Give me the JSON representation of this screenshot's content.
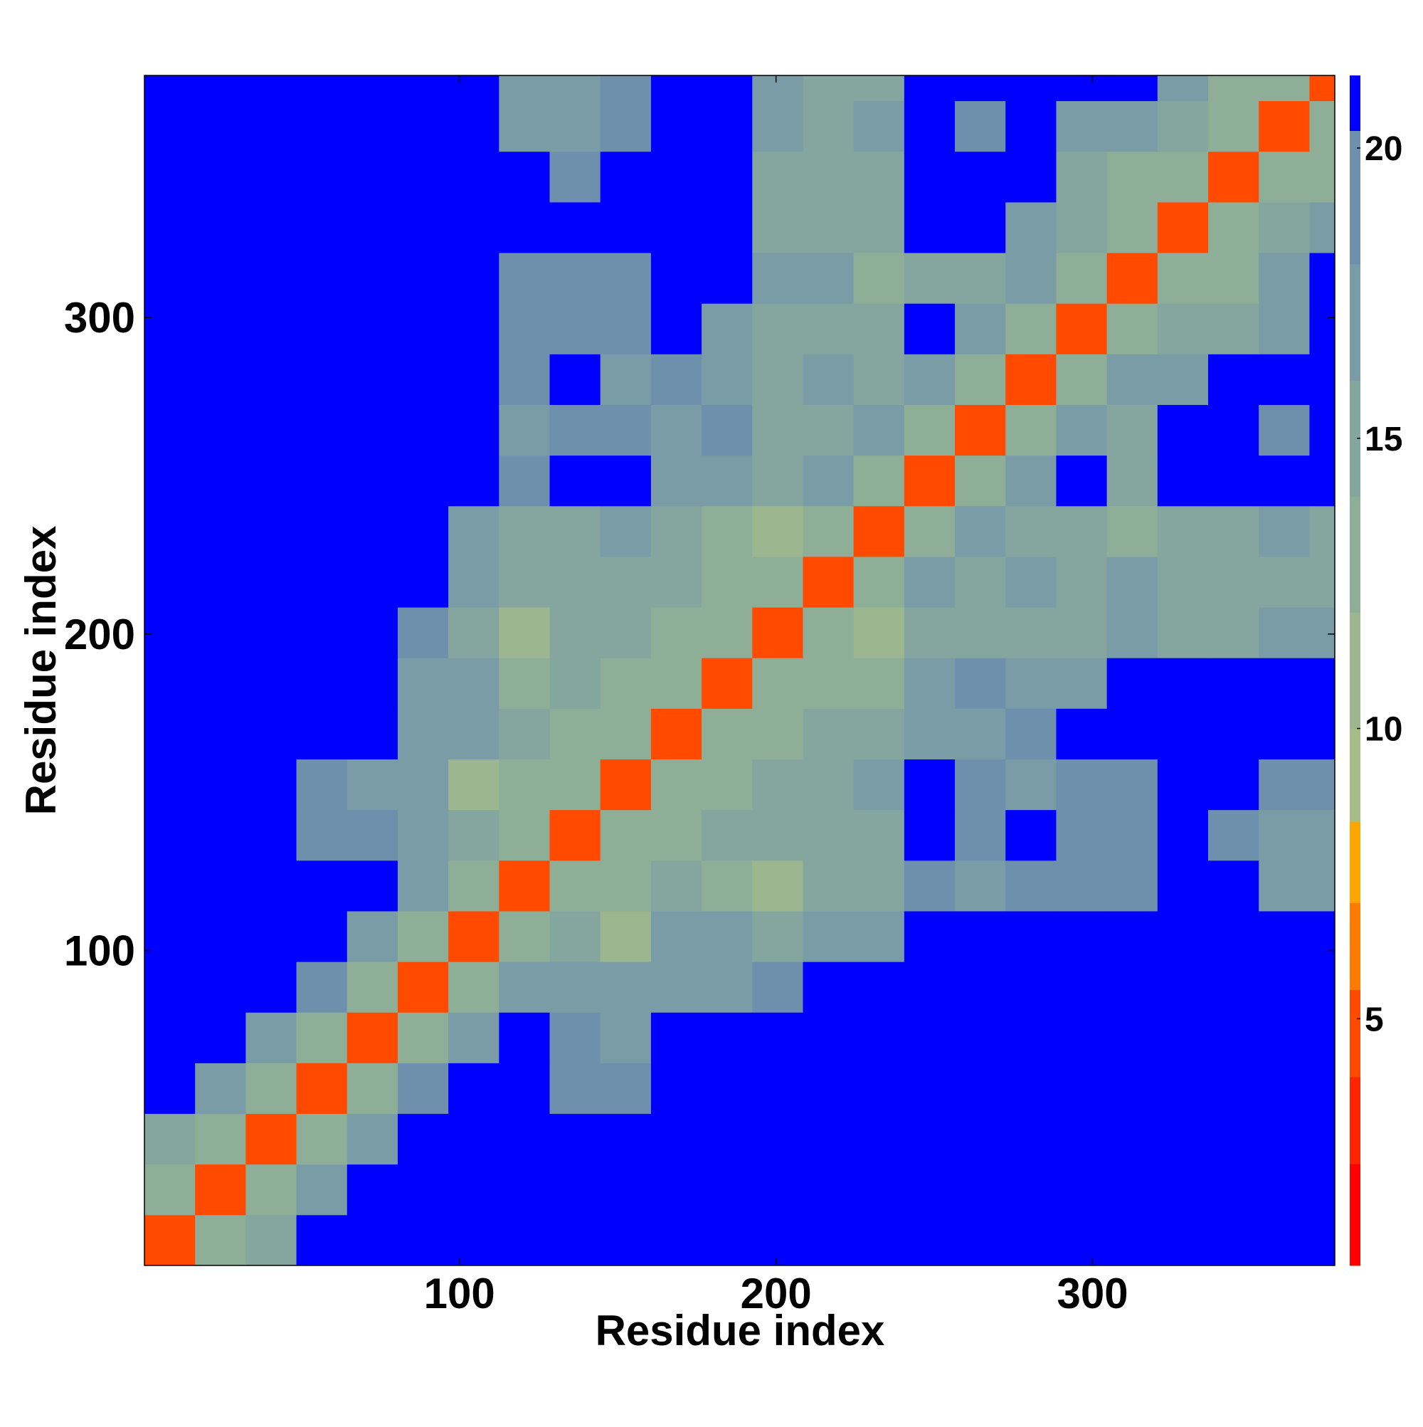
{
  "chart_data": {
    "type": "heatmap",
    "x_label": "Residue index",
    "y_label": "Residue index",
    "xlim": [
      0.5,
      376.5
    ],
    "ylim": [
      0.5,
      376.5
    ],
    "xticks": [
      100,
      200,
      300
    ],
    "yticks": [
      100,
      200,
      300
    ],
    "x_bins": [
      0.5,
      16.5,
      32.5,
      48.5,
      64.5,
      80.5,
      96.5,
      112.5,
      128.5,
      144.5,
      160.5,
      176.5,
      192.5,
      208.5,
      224.5,
      240.5,
      256.5,
      272.5,
      288.5,
      304.5,
      320.5,
      336.5,
      352.5,
      368.5,
      376.5
    ],
    "y_bins": [
      0.5,
      16.5,
      32.5,
      48.5,
      64.5,
      80.5,
      96.5,
      112.5,
      128.5,
      144.5,
      160.5,
      176.5,
      192.5,
      208.5,
      224.5,
      240.5,
      256.5,
      272.5,
      288.5,
      304.5,
      320.5,
      336.5,
      352.5,
      368.5,
      376.5
    ],
    "z": [
      [
        4,
        12,
        15,
        21,
        21,
        21,
        21,
        21,
        21,
        21,
        21,
        21,
        21,
        21,
        21,
        21,
        21,
        21,
        21,
        21,
        21,
        21,
        21,
        21
      ],
      [
        12,
        4,
        12,
        16,
        21,
        21,
        21,
        21,
        21,
        21,
        21,
        21,
        21,
        21,
        21,
        21,
        21,
        21,
        21,
        21,
        21,
        21,
        21,
        21
      ],
      [
        15,
        12,
        4,
        12,
        17,
        21,
        21,
        21,
        21,
        21,
        21,
        21,
        21,
        21,
        21,
        21,
        21,
        21,
        21,
        21,
        21,
        21,
        21,
        21
      ],
      [
        21,
        16,
        12,
        4,
        12,
        18,
        21,
        21,
        19,
        19,
        21,
        21,
        21,
        21,
        21,
        21,
        21,
        21,
        21,
        21,
        21,
        21,
        21,
        21
      ],
      [
        21,
        21,
        17,
        12,
        4,
        12,
        16,
        21,
        18,
        17,
        21,
        21,
        21,
        21,
        21,
        21,
        21,
        21,
        21,
        21,
        21,
        21,
        21,
        21
      ],
      [
        21,
        21,
        21,
        18,
        12,
        4,
        12,
        17,
        16,
        17,
        17,
        17,
        18,
        21,
        21,
        21,
        21,
        21,
        21,
        21,
        21,
        21,
        21,
        21
      ],
      [
        21,
        21,
        21,
        21,
        16,
        12,
        4,
        12,
        15,
        11,
        17,
        16,
        15,
        16,
        17,
        21,
        21,
        21,
        21,
        21,
        21,
        21,
        21,
        21
      ],
      [
        21,
        21,
        21,
        21,
        21,
        17,
        12,
        4,
        12,
        13,
        15,
        13,
        11,
        15,
        14,
        19,
        17,
        19,
        18,
        18,
        21,
        21,
        17,
        17
      ],
      [
        21,
        21,
        21,
        19,
        18,
        16,
        15,
        12,
        4,
        12,
        13,
        14,
        15,
        14,
        15,
        21,
        18,
        21,
        18,
        18,
        21,
        19,
        17,
        17
      ],
      [
        21,
        21,
        21,
        19,
        17,
        17,
        11,
        13,
        12,
        4,
        12,
        13,
        14,
        15,
        16,
        21,
        19,
        17,
        19,
        18,
        21,
        21,
        18,
        18
      ],
      [
        21,
        21,
        21,
        21,
        21,
        17,
        17,
        15,
        13,
        12,
        4,
        12,
        13,
        14,
        15,
        16,
        16,
        19,
        21,
        21,
        21,
        21,
        21,
        21
      ],
      [
        21,
        21,
        21,
        21,
        21,
        17,
        16,
        13,
        14,
        13,
        12,
        4,
        12,
        13,
        13,
        17,
        18,
        17,
        17,
        21,
        21,
        21,
        21,
        21
      ],
      [
        21,
        21,
        21,
        21,
        21,
        18,
        15,
        11,
        15,
        14,
        13,
        12,
        4,
        12,
        11,
        15,
        15,
        15,
        15,
        16,
        15,
        15,
        16,
        16
      ],
      [
        21,
        21,
        21,
        21,
        21,
        21,
        16,
        15,
        14,
        15,
        14,
        13,
        12,
        4,
        12,
        16,
        15,
        17,
        15,
        16,
        15,
        14,
        15,
        15
      ],
      [
        21,
        21,
        21,
        21,
        21,
        21,
        17,
        14,
        15,
        16,
        15,
        13,
        11,
        12,
        4,
        12,
        16,
        14,
        14,
        13,
        15,
        15,
        17,
        15
      ],
      [
        21,
        21,
        21,
        21,
        21,
        21,
        21,
        19,
        21,
        21,
        16,
        17,
        15,
        16,
        12,
        4,
        12,
        16,
        21,
        15,
        21,
        21,
        21,
        21
      ],
      [
        21,
        21,
        21,
        21,
        21,
        21,
        21,
        17,
        18,
        19,
        16,
        18,
        15,
        15,
        16,
        12,
        4,
        12,
        16,
        15,
        21,
        21,
        18,
        21
      ],
      [
        21,
        21,
        21,
        21,
        21,
        21,
        21,
        19,
        21,
        17,
        19,
        17,
        15,
        17,
        14,
        16,
        12,
        4,
        12,
        16,
        17,
        21,
        21,
        21
      ],
      [
        21,
        21,
        21,
        21,
        21,
        21,
        21,
        18,
        18,
        19,
        21,
        17,
        15,
        15,
        14,
        21,
        16,
        12,
        4,
        12,
        14,
        15,
        17,
        21
      ],
      [
        21,
        21,
        21,
        21,
        21,
        21,
        21,
        18,
        18,
        18,
        21,
        21,
        16,
        16,
        13,
        15,
        15,
        16,
        12,
        4,
        12,
        13,
        16,
        21
      ],
      [
        21,
        21,
        21,
        21,
        21,
        21,
        21,
        21,
        21,
        21,
        21,
        21,
        15,
        15,
        15,
        21,
        21,
        17,
        14,
        12,
        4,
        12,
        14,
        16
      ],
      [
        21,
        21,
        21,
        21,
        21,
        21,
        21,
        21,
        19,
        21,
        21,
        21,
        15,
        14,
        15,
        21,
        21,
        21,
        15,
        13,
        12,
        4,
        12,
        13
      ],
      [
        21,
        21,
        21,
        21,
        21,
        21,
        21,
        17,
        17,
        18,
        21,
        21,
        16,
        15,
        17,
        21,
        18,
        21,
        17,
        16,
        14,
        12,
        4,
        12
      ],
      [
        21,
        21,
        21,
        21,
        21,
        21,
        21,
        17,
        17,
        18,
        21,
        21,
        16,
        15,
        15,
        21,
        21,
        21,
        21,
        21,
        16,
        13,
        12,
        4
      ]
    ],
    "colorbar": {
      "levels": [
        0.75,
        2.5,
        4,
        5.5,
        7,
        8.4,
        10,
        12,
        14,
        16,
        18,
        20.3,
        21.25
      ],
      "colors": [
        "#ff0000",
        "#ff2400",
        "#ff4a00",
        "#ff7a00",
        "#ffa500",
        "#a6bd88",
        "#9cb68f",
        "#8fae97",
        "#84a69f",
        "#7a9ca6",
        "#6f90ac",
        "#0000ff"
      ],
      "ticks": [
        5,
        10,
        15,
        20
      ]
    }
  }
}
